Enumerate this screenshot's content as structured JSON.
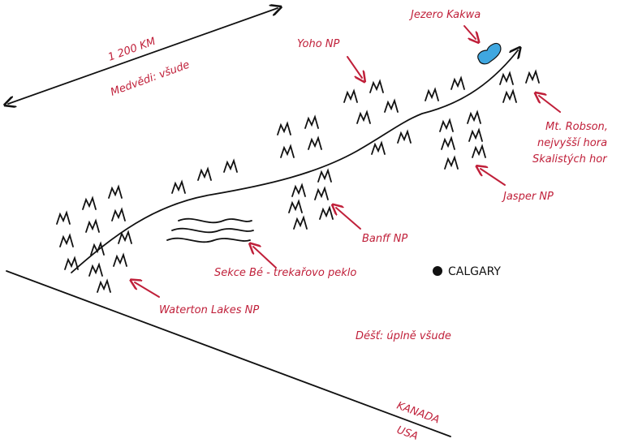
{
  "labels": {
    "distance": "1 200 KM",
    "bears": "Medvědi: všude",
    "jezero": "Jezero Kakwa",
    "yoho": "Yoho NP",
    "robson_1": "Mt. Robson,",
    "robson_2": "nejvyšší hora",
    "robson_3": "Skalistých hor",
    "jasper": "Jasper NP",
    "banff": "Banff NP",
    "sekce": "Sekce Bé - trekařovo peklo",
    "calgary": "CALGARY",
    "waterton": "Waterton Lakes NP",
    "rain": "Déšť: úplně všude",
    "kanada": "KANADA",
    "usa": "USA"
  },
  "colors": {
    "ink": "#111111",
    "accent": "#c0203a",
    "lake": "#3fa7e0"
  }
}
